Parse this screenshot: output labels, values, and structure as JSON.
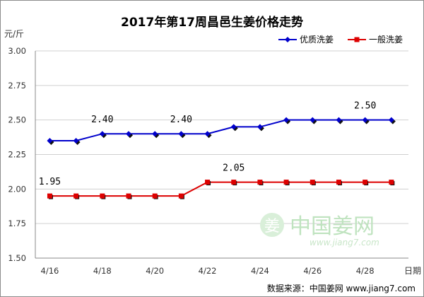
{
  "chart_data": {
    "type": "line",
    "title": "2017年第17周昌邑生姜价格走势",
    "ylabel": "元/斤",
    "xlabel": "日期",
    "ylim": [
      1.5,
      3.0
    ],
    "yticks": [
      "1.50",
      "1.75",
      "2.00",
      "2.25",
      "2.50",
      "2.75",
      "3.00"
    ],
    "categories": [
      "4/16",
      "4/17",
      "4/18",
      "4/19",
      "4/20",
      "4/21",
      "4/22",
      "4/23",
      "4/24",
      "4/25",
      "4/26",
      "4/27",
      "4/28",
      "4/29"
    ],
    "xtick_labels": [
      "4/16",
      "4/18",
      "4/20",
      "4/22",
      "4/24",
      "4/26",
      "4/28"
    ],
    "grid": true,
    "legend_position": "top-right",
    "series": [
      {
        "name": "优质洗姜",
        "color": "#0000cc",
        "marker": "diamond",
        "values": [
          2.35,
          2.35,
          2.4,
          2.4,
          2.4,
          2.4,
          2.4,
          2.45,
          2.45,
          2.5,
          2.5,
          2.5,
          2.5,
          2.5
        ]
      },
      {
        "name": "一般洗姜",
        "color": "#dd0000",
        "marker": "square",
        "values": [
          1.95,
          1.95,
          1.95,
          1.95,
          1.95,
          1.95,
          2.05,
          2.05,
          2.05,
          2.05,
          2.05,
          2.05,
          2.05,
          2.05
        ]
      }
    ],
    "annotations": [
      {
        "text": "2.40",
        "series": 0,
        "index": 2
      },
      {
        "text": "2.40",
        "series": 0,
        "index": 5
      },
      {
        "text": "2.50",
        "series": 0,
        "index": 12
      },
      {
        "text": "1.95",
        "series": 1,
        "index": 0
      },
      {
        "text": "2.05",
        "series": 1,
        "index": 7
      }
    ],
    "source": "数据来源：中国姜网 www.jiang7.com"
  },
  "watermark": {
    "brand": "中国姜网",
    "url": "www.jiang7.com",
    "logo_char": "姜"
  }
}
